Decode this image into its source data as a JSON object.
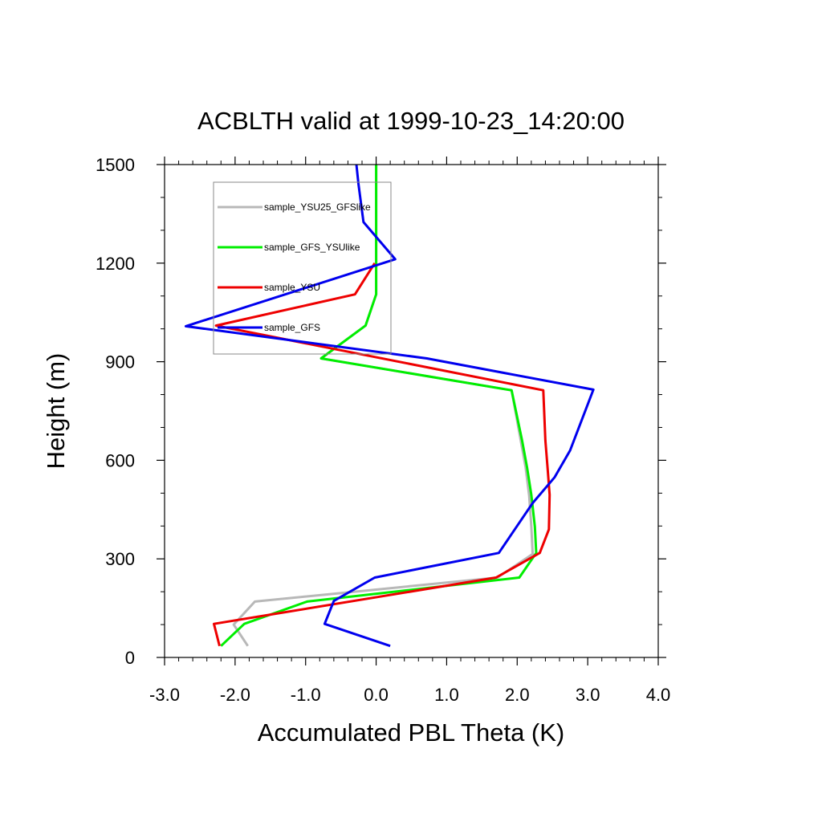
{
  "chart_data": {
    "type": "line",
    "title": "ACBLTH valid at 1999-10-23_14:20:00",
    "xlabel": "Accumulated PBL Theta (K)",
    "ylabel": "Height (m)",
    "xlim": [
      -3.0,
      4.0
    ],
    "ylim": [
      0,
      1500
    ],
    "xticks": [
      "-3.0",
      "-2.0",
      "-1.0",
      "0.0",
      "1.0",
      "2.0",
      "3.0",
      "4.0"
    ],
    "yticks": [
      "0",
      "300",
      "600",
      "900",
      "1200",
      "1500"
    ],
    "legend_position": "top-left",
    "grid": false,
    "series": [
      {
        "name": "sample_YSU25_GFSlike",
        "color": "#b8b8b8",
        "points": [
          [
            -1.82,
            35
          ],
          [
            -2.02,
            100
          ],
          [
            -1.72,
            170
          ],
          [
            1.72,
            243
          ],
          [
            2.22,
            315
          ],
          [
            2.2,
            398
          ],
          [
            2.17,
            492
          ],
          [
            2.12,
            578
          ],
          [
            2.05,
            660
          ],
          [
            1.92,
            813
          ],
          [
            -0.78,
            910
          ],
          [
            -0.15,
            1010
          ],
          [
            0,
            1105
          ],
          [
            0,
            1200
          ],
          [
            0,
            1300
          ],
          [
            0,
            1500
          ]
        ]
      },
      {
        "name": "sample_GFS_YSUlike",
        "color": "#00ee00",
        "points": [
          [
            -2.2,
            35
          ],
          [
            -1.87,
            102
          ],
          [
            -0.98,
            170
          ],
          [
            2.03,
            243
          ],
          [
            2.27,
            318
          ],
          [
            2.25,
            398
          ],
          [
            2.2,
            495
          ],
          [
            2.14,
            578
          ],
          [
            2.07,
            660
          ],
          [
            1.92,
            813
          ],
          [
            -0.78,
            910
          ],
          [
            -0.15,
            1010
          ],
          [
            0,
            1105
          ],
          [
            0,
            1200
          ],
          [
            0,
            1300
          ],
          [
            0,
            1500
          ]
        ]
      },
      {
        "name": "sample_YSU",
        "color": "#ee0000",
        "points": [
          [
            -2.22,
            35
          ],
          [
            -2.3,
            102
          ],
          [
            1.7,
            243
          ],
          [
            2.32,
            318
          ],
          [
            2.45,
            390
          ],
          [
            2.46,
            495
          ],
          [
            2.43,
            578
          ],
          [
            2.4,
            660
          ],
          [
            2.37,
            813
          ],
          [
            -2.27,
            1010
          ],
          [
            -0.3,
            1105
          ],
          [
            -0.02,
            1200
          ]
        ]
      },
      {
        "name": "sample_GFS",
        "color": "#0000ee",
        "points": [
          [
            0.2,
            35
          ],
          [
            -0.73,
            102
          ],
          [
            -0.6,
            172
          ],
          [
            -0.02,
            243
          ],
          [
            1.74,
            318
          ],
          [
            2.22,
            470
          ],
          [
            2.53,
            548
          ],
          [
            2.75,
            630
          ],
          [
            3.08,
            815
          ],
          [
            0.72,
            910
          ],
          [
            -2.7,
            1008
          ],
          [
            0.27,
            1212
          ],
          [
            -0.18,
            1325
          ],
          [
            -0.25,
            1440
          ],
          [
            -0.28,
            1500
          ]
        ]
      }
    ]
  }
}
